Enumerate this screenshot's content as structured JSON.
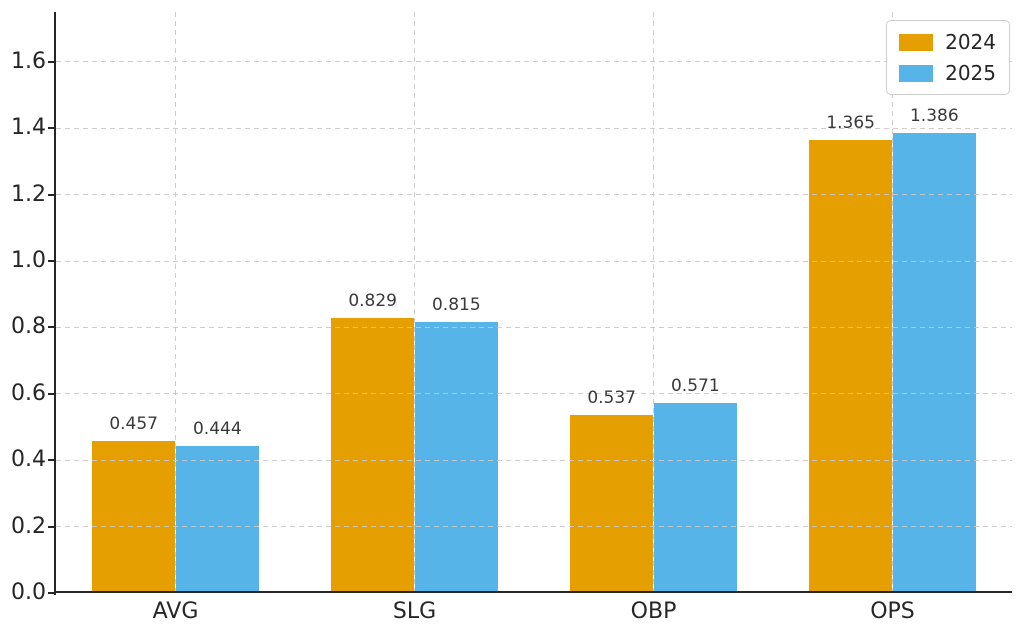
{
  "chart_data": {
    "type": "bar",
    "title": "",
    "xlabel": "",
    "ylabel": "",
    "categories": [
      "AVG",
      "SLG",
      "OBP",
      "OPS"
    ],
    "series": [
      {
        "name": "2024",
        "color": "#E69F00",
        "values": [
          0.457,
          0.829,
          0.537,
          1.365
        ],
        "value_labels": [
          "0.457",
          "0.829",
          "0.537",
          "1.365"
        ]
      },
      {
        "name": "2025",
        "color": "#56B4E9",
        "values": [
          0.444,
          0.815,
          0.571,
          1.386
        ],
        "value_labels": [
          "0.444",
          "0.815",
          "0.571",
          "1.386"
        ]
      }
    ],
    "yticks": [
      0.0,
      0.2,
      0.4,
      0.6,
      0.8,
      1.0,
      1.2,
      1.4,
      1.6
    ],
    "ytick_labels": [
      "0.0",
      "0.2",
      "0.4",
      "0.6",
      "0.8",
      "1.0",
      "1.2",
      "1.4",
      "1.6"
    ],
    "ylim": [
      0,
      1.75
    ],
    "bar_width_fraction": 0.35,
    "grid": "dashed gray, horizontal and vertical, drawn over bars",
    "legend": {
      "position": "upper right",
      "entries": [
        "2024",
        "2025"
      ]
    }
  },
  "colors": {
    "bar_2024": "#E69F00",
    "bar_2025": "#56B4E9",
    "grid": "#c9c9c9",
    "spine": "#262626",
    "tick_label": "#262626",
    "value_label": "#3a3a3a",
    "legend_border": "#cccccc",
    "background": "#ffffff"
  }
}
